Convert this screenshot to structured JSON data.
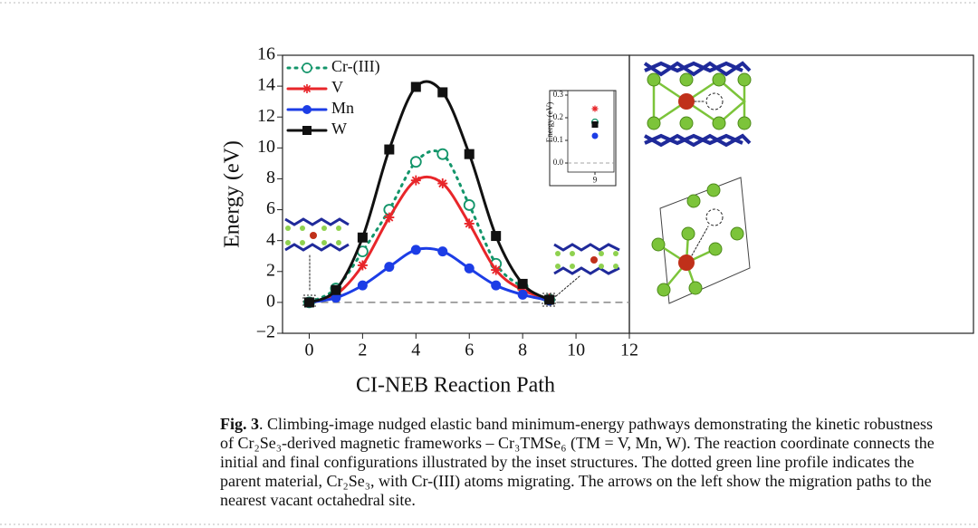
{
  "chart_data": [
    {
      "type": "line",
      "xlabel": "CI-NEB Reaction Path",
      "ylabel": "Energy (eV)",
      "x": [
        0,
        1,
        2,
        3,
        4,
        5,
        6,
        7,
        8,
        9
      ],
      "series": [
        {
          "name": "Cr-(III)",
          "color": "#13956a",
          "marker": "circle-open",
          "dash": "dotted",
          "values": [
            0,
            0.9,
            3.3,
            6.0,
            9.1,
            9.6,
            6.3,
            2.5,
            1.0,
            0.18
          ]
        },
        {
          "name": "V",
          "color": "#e8262a",
          "marker": "star",
          "dash": "solid",
          "values": [
            0,
            0.5,
            2.4,
            5.5,
            7.9,
            7.7,
            5.1,
            2.1,
            0.8,
            0.24
          ]
        },
        {
          "name": "Mn",
          "color": "#1c3de6",
          "marker": "circle",
          "dash": "solid",
          "values": [
            0,
            0.3,
            1.1,
            2.3,
            3.4,
            3.3,
            2.2,
            1.1,
            0.5,
            0.12
          ]
        },
        {
          "name": "W",
          "color": "#111111",
          "marker": "square",
          "dash": "solid",
          "values": [
            0,
            0.8,
            4.2,
            9.9,
            13.95,
            13.6,
            9.6,
            4.3,
            1.2,
            0.17
          ]
        }
      ],
      "xlim": [
        -1,
        12
      ],
      "ylim": [
        -2,
        16
      ],
      "xticks": [
        0,
        2,
        4,
        6,
        8,
        10,
        12
      ],
      "yticks": [
        {
          "value": -2,
          "label": "−2"
        },
        0,
        2,
        4,
        6,
        8,
        10,
        12,
        14,
        16
      ],
      "hline": 0,
      "legend": "upper left"
    },
    {
      "type": "scatter",
      "ylabel": "Energy (eV)",
      "x": [
        9
      ],
      "series": [
        {
          "color": "#e8262a",
          "marker": "star",
          "values": [
            0.24
          ]
        },
        {
          "color": "#13956a",
          "marker": "circle-open",
          "values": [
            0.18
          ]
        },
        {
          "color": "#111111",
          "marker": "square",
          "values": [
            0.17
          ]
        },
        {
          "color": "#1c3de6",
          "marker": "circle",
          "values": [
            0.12
          ]
        }
      ],
      "xlim": [
        8,
        9.7
      ],
      "ylim": [
        -0.04,
        0.32
      ],
      "xticks": [
        9
      ],
      "yticks": [
        {
          "value": 0,
          "label": "0.0"
        },
        {
          "value": 0.1,
          "label": "0.1"
        },
        {
          "value": 0.2,
          "label": "0.2"
        },
        {
          "value": 0.3,
          "label": "0.3"
        }
      ],
      "hline": 0
    }
  ],
  "caption": {
    "label": "Fig. 3",
    "lines": [
      ".  Climbing-image nudged elastic band minimum-energy pathways demonstrating the kinetic robustness",
      "of Cr₂Se₃-derived magnetic frameworks – Cr₃TMSe₆ (TM = V, Mn, W). The reaction coordinate connects the",
      "initial and final configurations illustrated by the inset structures. The dotted green line profile indicates the",
      "parent material, Cr₂Se₃, with Cr-(III) atoms migrating. The arrows on the left show the migration paths to the",
      "nearest vacant octahedral site."
    ]
  }
}
